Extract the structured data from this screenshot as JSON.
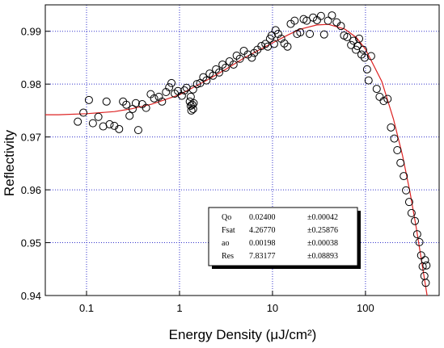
{
  "chart_data": {
    "type": "scatter",
    "x_label": "Energy Density (μJ/cm²)",
    "y_label": "Reflectivity",
    "xscale": "log",
    "xlim": [
      0.036,
      620
    ],
    "ylim": [
      0.94,
      0.995
    ],
    "xticks": [
      0.1,
      1,
      10,
      100
    ],
    "yticks": [
      0.94,
      0.95,
      0.96,
      0.97,
      0.98,
      0.99
    ],
    "grid": true,
    "grid_color": "#3333cc",
    "points": {
      "color": "#000000",
      "x": [
        0.0805,
        0.0925,
        0.106,
        0.117,
        0.134,
        0.151,
        0.164,
        0.177,
        0.199,
        0.224,
        0.247,
        0.268,
        0.29,
        0.313,
        0.339,
        0.36,
        0.397,
        0.437,
        0.49,
        0.533,
        0.6,
        0.648,
        0.716,
        0.774,
        0.82,
        0.888,
        0.961,
        1.06,
        1.13,
        1.19,
        1.29,
        1.32,
        1.34,
        1.37,
        1.4,
        1.42,
        1.4,
        1.32,
        1.54,
        1.67,
        1.8,
        1.95,
        2.11,
        2.29,
        2.47,
        2.67,
        2.9,
        3.13,
        3.45,
        3.81,
        4.12,
        4.46,
        4.92,
        5.43,
        5.99,
        6.36,
        6.88,
        7.6,
        8.4,
        8.9,
        9.4,
        9.8,
        10.4,
        10.8,
        11.5,
        12.4,
        13.4,
        14.5,
        15.7,
        17.3,
        18.4,
        19.9,
        21.6,
        23.3,
        25.2,
        27.3,
        30.1,
        33.2,
        35.9,
        39.6,
        43.6,
        49,
        54.4,
        58.8,
        63.6,
        70.1,
        74.4,
        78.9,
        82.1,
        85.4,
        90.6,
        94.2,
        98,
        104,
        108,
        115,
        132,
        142,
        157,
        173,
        188,
        204,
        220,
        238,
        258,
        273,
        295,
        313,
        340,
        360,
        380,
        397,
        412,
        430,
        437,
        445,
        453
      ],
      "y": [
        0.9729,
        0.9746,
        0.977,
        0.9726,
        0.9738,
        0.972,
        0.9767,
        0.9724,
        0.9721,
        0.9715,
        0.9767,
        0.9761,
        0.974,
        0.9753,
        0.9764,
        0.9713,
        0.9762,
        0.9755,
        0.9781,
        0.9773,
        0.9776,
        0.9767,
        0.9785,
        0.9794,
        0.9802,
        0.9782,
        0.9787,
        0.9778,
        0.9788,
        0.9793,
        0.9767,
        0.9759,
        0.975,
        0.9761,
        0.9753,
        0.9764,
        0.979,
        0.9776,
        0.98,
        0.9802,
        0.9813,
        0.9807,
        0.982,
        0.9816,
        0.9828,
        0.9822,
        0.9837,
        0.9831,
        0.9843,
        0.9837,
        0.9854,
        0.9848,
        0.9863,
        0.9856,
        0.985,
        0.9859,
        0.9865,
        0.9872,
        0.9876,
        0.9871,
        0.9886,
        0.9892,
        0.9876,
        0.9902,
        0.9895,
        0.9886,
        0.9877,
        0.9871,
        0.9914,
        0.992,
        0.9895,
        0.9898,
        0.9923,
        0.992,
        0.9895,
        0.9926,
        0.9921,
        0.9929,
        0.9894,
        0.992,
        0.993,
        0.9917,
        0.991,
        0.9892,
        0.9889,
        0.9874,
        0.9882,
        0.9865,
        0.9872,
        0.9886,
        0.9856,
        0.9865,
        0.985,
        0.9828,
        0.9807,
        0.9853,
        0.9791,
        0.9776,
        0.9768,
        0.9772,
        0.9718,
        0.9697,
        0.9675,
        0.9651,
        0.9626,
        0.9599,
        0.9577,
        0.9556,
        0.9541,
        0.9516,
        0.9501,
        0.9476,
        0.9455,
        0.9437,
        0.9467,
        0.9424,
        0.9457
      ]
    },
    "fit": {
      "color": "#dd2222",
      "x": [
        0.036,
        0.05,
        0.1,
        0.2,
        0.3,
        0.5,
        1,
        2,
        3,
        5,
        10,
        15,
        20,
        30,
        40,
        60,
        80,
        100,
        150,
        200,
        250,
        300,
        350,
        400,
        460
      ],
      "y": [
        0.9742,
        0.9742,
        0.9744,
        0.9748,
        0.9753,
        0.9762,
        0.978,
        0.9808,
        0.9826,
        0.985,
        0.9878,
        0.9894,
        0.9904,
        0.9912,
        0.9913,
        0.9904,
        0.9888,
        0.9866,
        0.9805,
        0.9734,
        0.9665,
        0.9597,
        0.953,
        0.9467,
        0.94
      ]
    },
    "fit_table": [
      [
        "Qo",
        "0.02400",
        "±0.00042"
      ],
      [
        "Fsat",
        "4.26770",
        "±0.25876"
      ],
      [
        "ao",
        "0.00198",
        "±0.00038"
      ],
      [
        "Res",
        "7.83177",
        "±0.08893"
      ]
    ]
  }
}
